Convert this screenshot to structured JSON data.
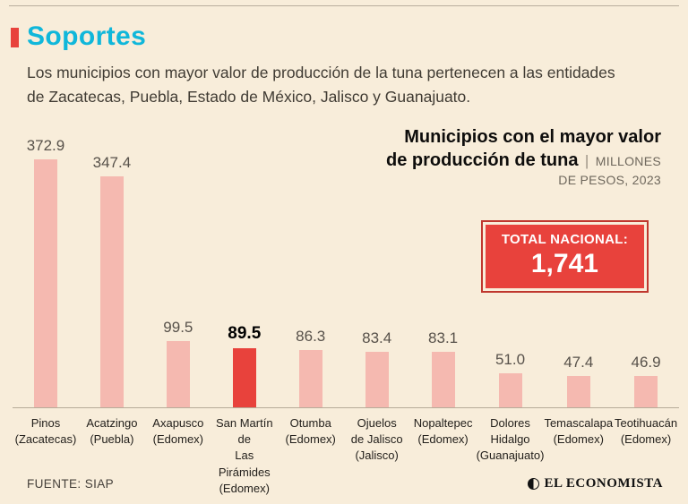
{
  "theme": {
    "accent_red": "#e8423c",
    "accent_red_dark": "#bf372e",
    "title_cyan": "#10b7da",
    "bar_pink": "#f5b9b0",
    "background": "#f8edda"
  },
  "header": {
    "title": "Soportes",
    "description": "Los municipios con mayor valor de producción de la tuna pertenecen a las entidades de Zacatecas, Puebla, Estado de México, Jalisco y Guanajuato."
  },
  "chart_title": {
    "line1": "Municipios con el mayor valor",
    "line2_bold": "de producción de tuna",
    "separator": "|",
    "units_top": "MILLONES",
    "units_bottom": "DE PESOS, 2023"
  },
  "total_box": {
    "label": "TOTAL NACIONAL:",
    "value": "1,741"
  },
  "chart_data": {
    "type": "bar",
    "title": "Municipios con el mayor valor de producción de tuna",
    "units": "Millones de pesos, 2023",
    "categories": [
      [
        "Pinos",
        "(Zacatecas)"
      ],
      [
        "Acatzingo",
        "(Puebla)"
      ],
      [
        "Axapusco",
        "(Edomex)"
      ],
      [
        "San Martín de",
        "Las Pirámides",
        "(Edomex)"
      ],
      [
        "Otumba",
        "(Edomex)"
      ],
      [
        "Ojuelos",
        "de Jalisco",
        "(Jalisco)"
      ],
      [
        "Nopaltepec",
        "(Edomex)"
      ],
      [
        "Dolores",
        "Hidalgo",
        "(Guanajuato)"
      ],
      [
        "Temascalapa",
        "(Edomex)"
      ],
      [
        "Teotihuacán",
        "(Edomex)"
      ]
    ],
    "values": [
      372.9,
      347.4,
      99.5,
      89.5,
      86.3,
      83.4,
      83.1,
      51.0,
      47.4,
      46.9
    ],
    "highlight_index": 3,
    "bar_color": "#f5b9b0",
    "highlight_color": "#e8423c",
    "total_national": "1,741",
    "ylim": [
      0,
      372.9
    ],
    "grid": false,
    "legend": "none"
  },
  "footer": {
    "source": "FUENTE: SIAP",
    "brand": "EL ECONOMISTA"
  }
}
